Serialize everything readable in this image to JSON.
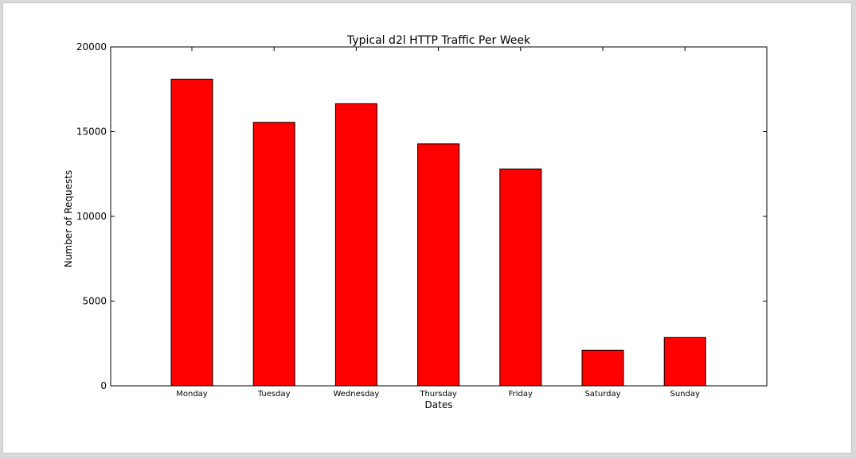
{
  "chart_data": {
    "type": "bar",
    "title": "Typical d2l HTTP Traffic Per Week",
    "xlabel": "Dates",
    "ylabel": "Number of Requests",
    "categories": [
      "Monday",
      "Tuesday",
      "Wednesday",
      "Thursday",
      "Friday",
      "Saturday",
      "Sunday"
    ],
    "values": [
      18100,
      15550,
      16650,
      14280,
      12800,
      2100,
      2850
    ],
    "ylim": [
      0,
      20000
    ],
    "yticks": [
      0,
      5000,
      10000,
      15000,
      20000
    ],
    "ytick_labels": [
      "0",
      "5000",
      "10000",
      "15000",
      "20000"
    ],
    "bar_color": "#ff0000",
    "grid": false,
    "legend": "none"
  }
}
